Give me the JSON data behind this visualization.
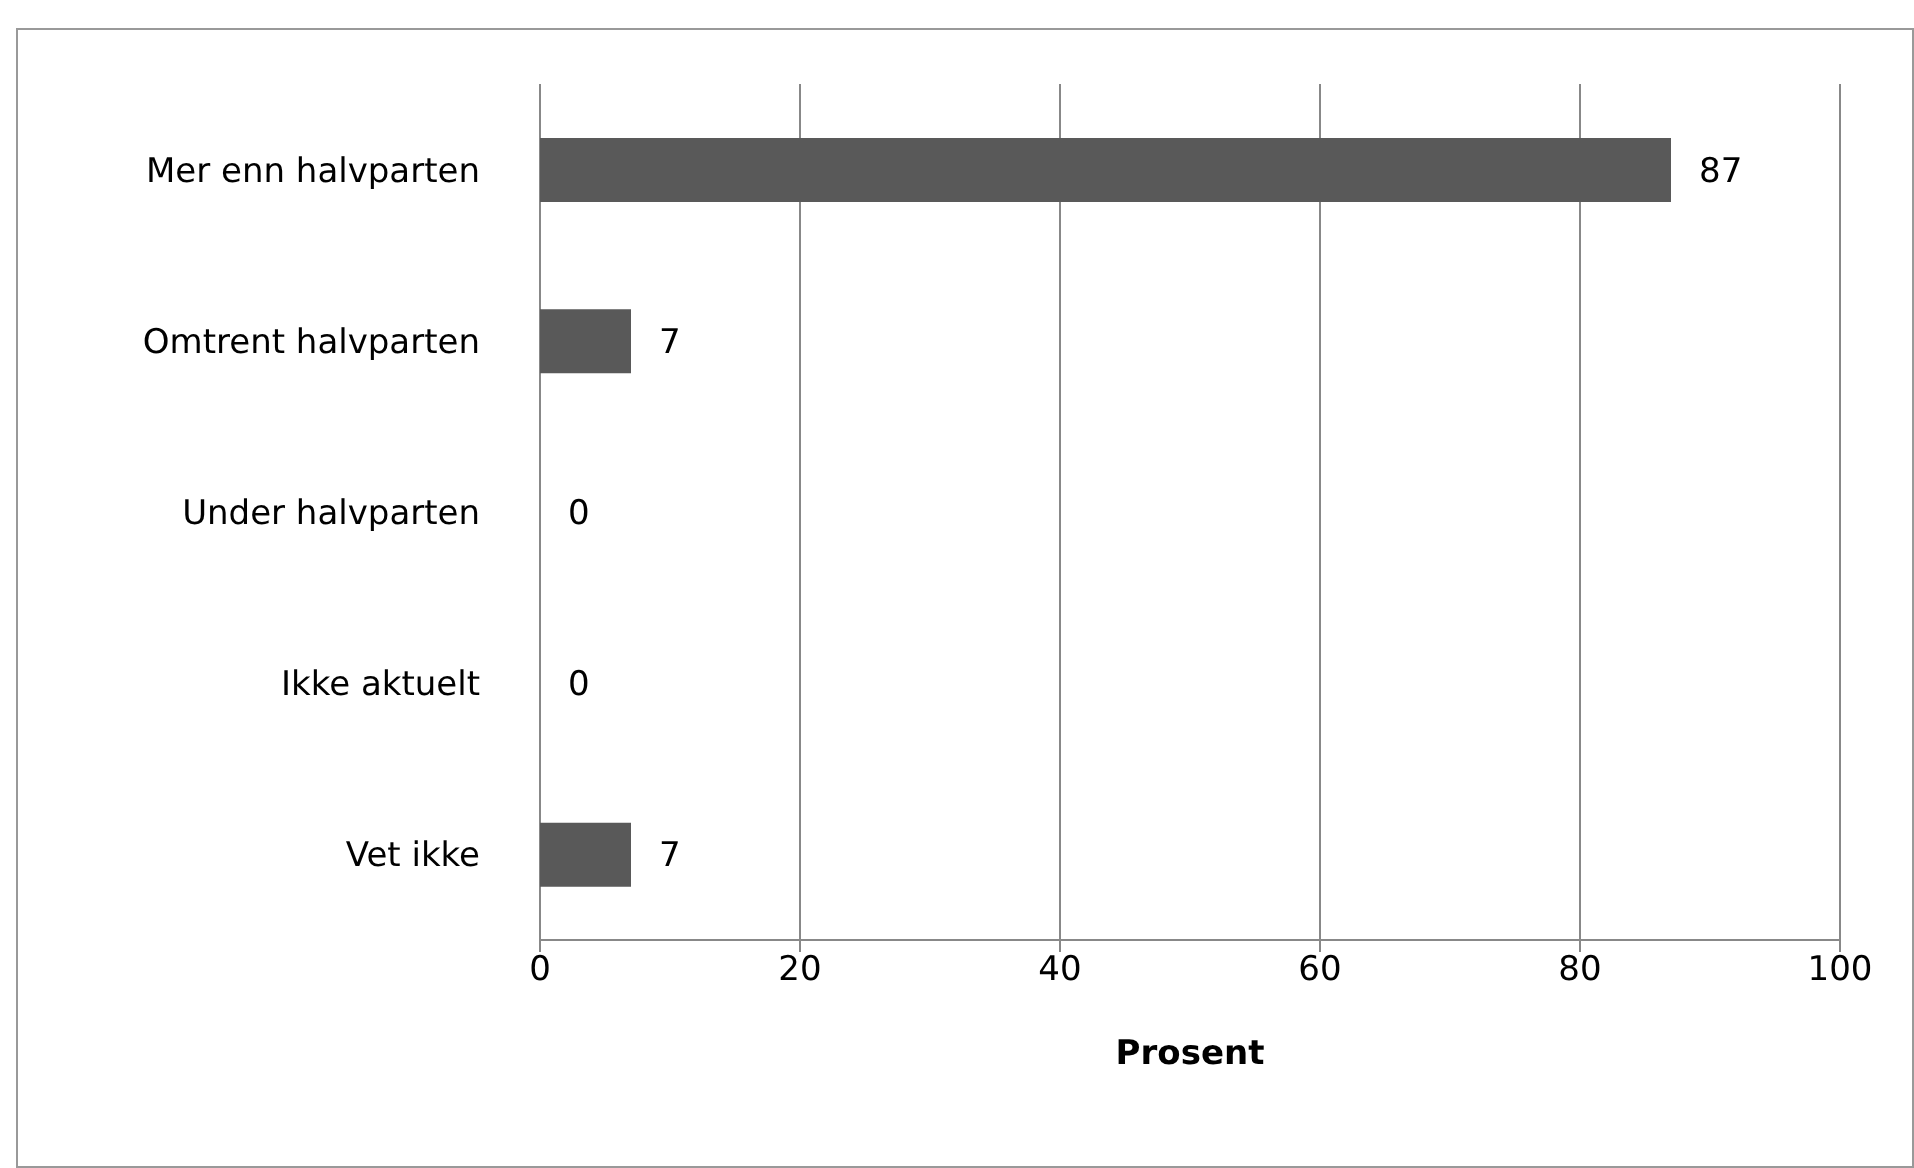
{
  "chart_data": {
    "type": "bar",
    "orientation": "horizontal",
    "xlabel": "Prosent",
    "categories": [
      "Mer enn halvparten",
      "Omtrent halvparten",
      "Under halvparten",
      "Ikke aktuelt",
      "Vet ikke"
    ],
    "values": [
      87,
      7,
      0,
      0,
      7
    ],
    "color": "#595959",
    "data_labels": true,
    "xlim": [
      0,
      100
    ],
    "xticks": [
      0,
      20,
      40,
      60,
      80,
      100
    ],
    "grid": "x"
  }
}
